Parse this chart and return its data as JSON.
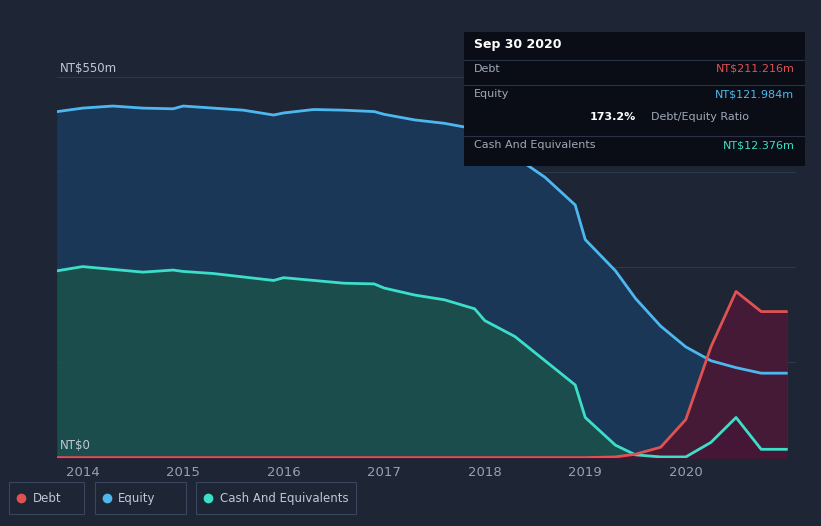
{
  "bg_color": "#1e2535",
  "plot_bg_color": "#1e2535",
  "title_box": {
    "date": "Sep 30 2020",
    "debt_label": "Debt",
    "debt_value": "NT$211.216m",
    "equity_label": "Equity",
    "equity_value": "NT$121.984m",
    "ratio": "173.2%",
    "ratio_label": "Debt/Equity Ratio",
    "cash_label": "Cash And Equivalents",
    "cash_value": "NT$12.376m"
  },
  "y_label_top": "NT$550m",
  "y_label_bot": "NT$0",
  "x_ticks": [
    2014,
    2015,
    2016,
    2017,
    2018,
    2019,
    2020
  ],
  "debt_color": "#e05252",
  "equity_color": "#4db8f0",
  "cash_color": "#3ddec8",
  "legend": [
    {
      "label": "Debt",
      "color": "#e05252"
    },
    {
      "label": "Equity",
      "color": "#4db8f0"
    },
    {
      "label": "Cash And Equivalents",
      "color": "#3ddec8"
    }
  ],
  "equity_x": [
    2013.75,
    2014.0,
    2014.3,
    2014.6,
    2014.9,
    2015.0,
    2015.3,
    2015.6,
    2015.9,
    2016.0,
    2016.3,
    2016.6,
    2016.9,
    2017.0,
    2017.3,
    2017.6,
    2017.9,
    2018.0,
    2018.3,
    2018.6,
    2018.9,
    2019.0,
    2019.3,
    2019.5,
    2019.75,
    2020.0,
    2020.25,
    2020.5,
    2020.75,
    2021.0
  ],
  "equity_y": [
    500,
    505,
    508,
    505,
    504,
    508,
    505,
    502,
    495,
    498,
    503,
    502,
    500,
    496,
    488,
    483,
    475,
    458,
    435,
    405,
    365,
    315,
    270,
    230,
    190,
    160,
    140,
    130,
    122,
    122
  ],
  "cash_x": [
    2013.75,
    2014.0,
    2014.3,
    2014.6,
    2014.9,
    2015.0,
    2015.3,
    2015.6,
    2015.9,
    2016.0,
    2016.3,
    2016.6,
    2016.9,
    2017.0,
    2017.3,
    2017.6,
    2017.9,
    2018.0,
    2018.3,
    2018.6,
    2018.9,
    2019.0,
    2019.3,
    2019.5,
    2019.75,
    2020.0,
    2020.25,
    2020.5,
    2020.75,
    2021.0
  ],
  "cash_y": [
    270,
    276,
    272,
    268,
    271,
    269,
    266,
    261,
    256,
    260,
    256,
    252,
    251,
    245,
    235,
    228,
    215,
    198,
    175,
    140,
    105,
    58,
    18,
    4,
    1,
    1,
    22,
    58,
    12,
    12
  ],
  "debt_x": [
    2013.75,
    2014.0,
    2014.3,
    2014.6,
    2014.9,
    2015.0,
    2015.3,
    2015.6,
    2015.9,
    2016.0,
    2016.3,
    2016.6,
    2016.9,
    2017.0,
    2017.3,
    2017.6,
    2017.9,
    2018.0,
    2018.3,
    2018.6,
    2018.9,
    2019.0,
    2019.3,
    2019.5,
    2019.75,
    2020.0,
    2020.25,
    2020.5,
    2020.75,
    2021.0
  ],
  "debt_y": [
    0,
    0,
    0,
    0,
    0,
    0,
    0,
    0,
    0,
    0,
    0,
    0,
    0,
    0,
    0,
    0,
    0,
    0,
    0,
    0,
    0,
    0,
    1,
    5,
    15,
    55,
    160,
    240,
    211,
    211
  ],
  "ylim": [
    0,
    570
  ],
  "xlim": [
    2013.75,
    2021.1
  ],
  "fill_eq_cash_color": "#1a3a5c",
  "fill_cash_zero_color": "#1a5550",
  "fill_debt_color": "#4a1535"
}
